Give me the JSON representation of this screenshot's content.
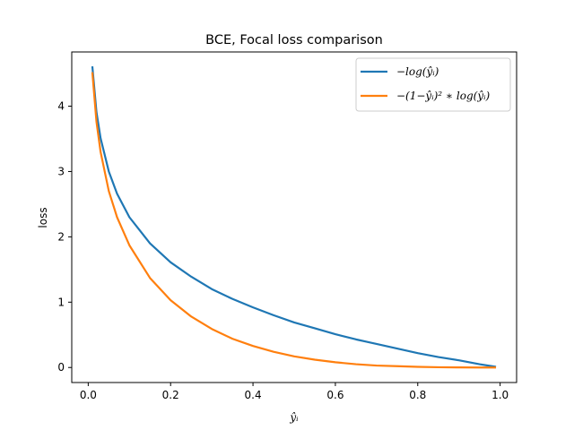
{
  "chart_data": {
    "type": "line",
    "title": "BCE, Focal loss comparison",
    "xlabel": "ŷᵢ",
    "ylabel": "loss",
    "xlim": [
      -0.04,
      1.04
    ],
    "ylim": [
      -0.23,
      4.83
    ],
    "xticks": [
      0.0,
      0.2,
      0.4,
      0.6,
      0.8,
      1.0
    ],
    "xtick_labels": [
      "0.0",
      "0.2",
      "0.4",
      "0.6",
      "0.8",
      "1.0"
    ],
    "yticks": [
      0,
      1,
      2,
      3,
      4
    ],
    "ytick_labels": [
      "0",
      "1",
      "2",
      "3",
      "4"
    ],
    "grid": false,
    "legend_position": "upper-right",
    "x": [
      0.01,
      0.02,
      0.03,
      0.05,
      0.07,
      0.1,
      0.15,
      0.2,
      0.25,
      0.3,
      0.35,
      0.4,
      0.45,
      0.5,
      0.55,
      0.6,
      0.65,
      0.7,
      0.75,
      0.8,
      0.85,
      0.9,
      0.95,
      0.99
    ],
    "series": [
      {
        "name": "−log(ŷᵢ)",
        "color": "#1f77b4",
        "values": [
          4.61,
          3.91,
          3.51,
          3.0,
          2.66,
          2.3,
          1.9,
          1.61,
          1.39,
          1.2,
          1.05,
          0.92,
          0.8,
          0.69,
          0.6,
          0.51,
          0.43,
          0.36,
          0.29,
          0.22,
          0.16,
          0.11,
          0.05,
          0.01
        ]
      },
      {
        "name": "−(1−ŷᵢ)² ∗ log(ŷᵢ)",
        "color": "#ff7f0e",
        "values": [
          4.52,
          3.76,
          3.3,
          2.7,
          2.3,
          1.87,
          1.37,
          1.03,
          0.78,
          0.59,
          0.44,
          0.33,
          0.24,
          0.17,
          0.12,
          0.08,
          0.05,
          0.03,
          0.02,
          0.01,
          0.004,
          0.001,
          0.0001,
          0.0
        ]
      }
    ]
  }
}
